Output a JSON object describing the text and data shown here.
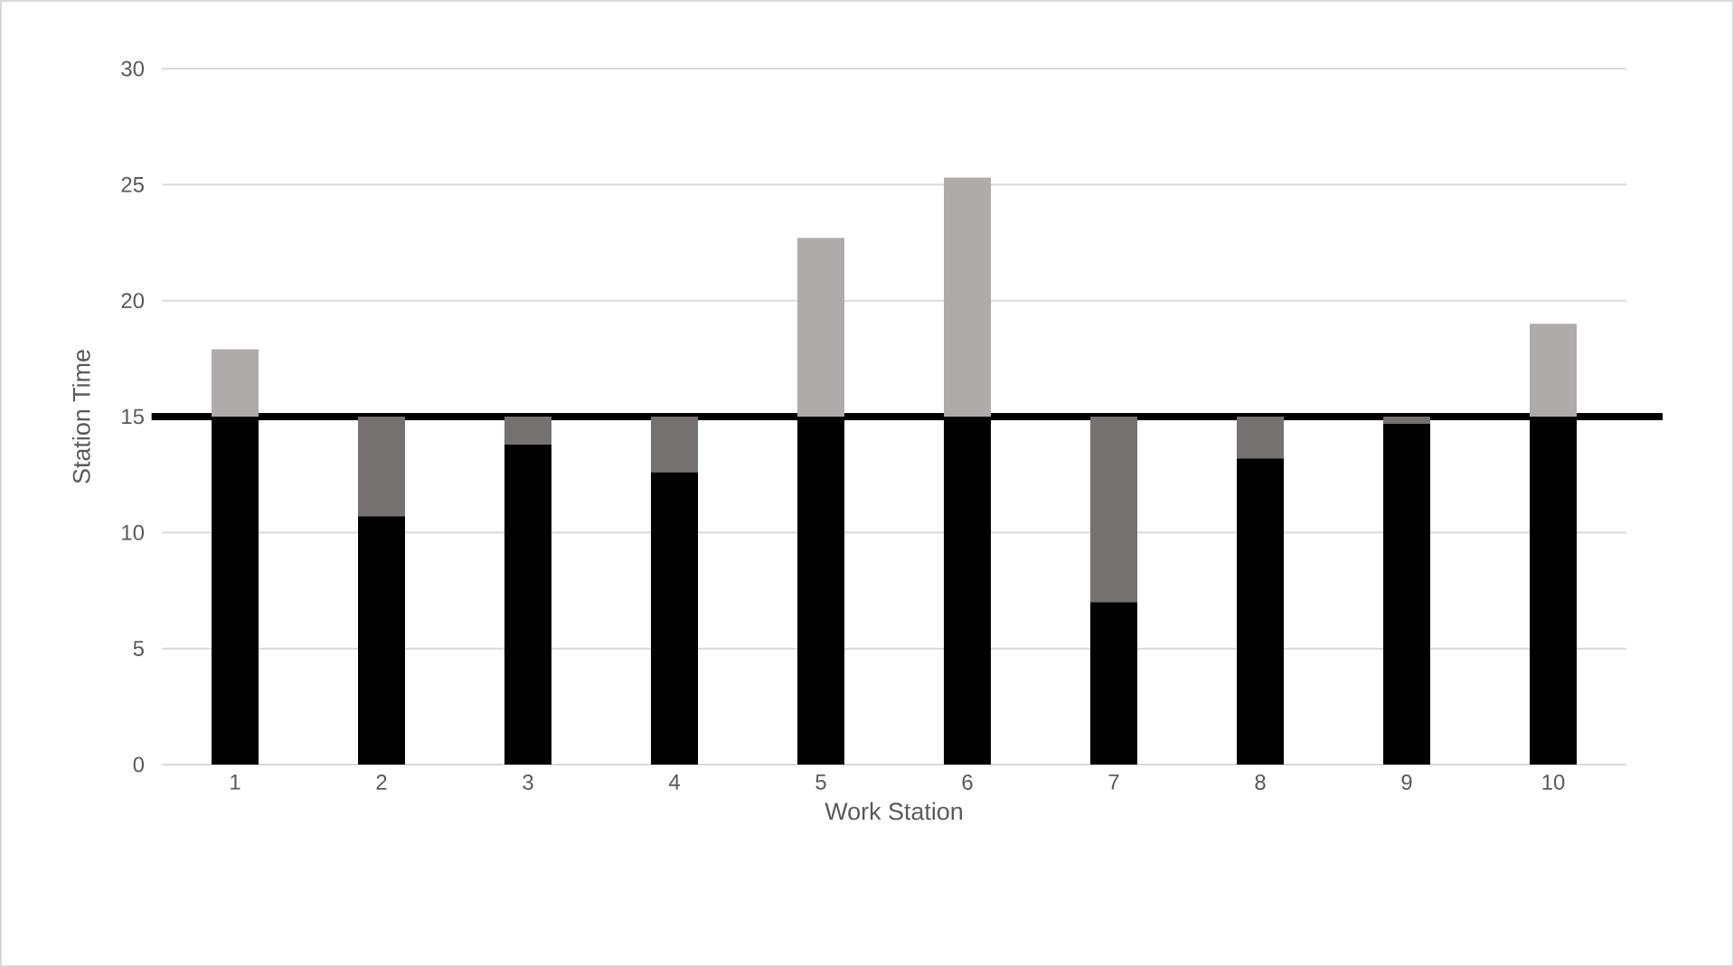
{
  "chart_data": {
    "type": "bar",
    "stacked": true,
    "xlabel": "Work Station",
    "ylabel": "Station Time",
    "categories": [
      "1",
      "2",
      "3",
      "4",
      "5",
      "6",
      "7",
      "8",
      "9",
      "10"
    ],
    "series": [
      {
        "color": "#000000",
        "values": [
          15,
          10.7,
          13.8,
          12.6,
          15,
          15,
          7.0,
          13.2,
          14.7,
          15
        ]
      },
      {
        "color": "#767171",
        "values": [
          0,
          4.3,
          1.2,
          2.4,
          0,
          0,
          8.0,
          1.8,
          0.3,
          0
        ]
      },
      {
        "color": "#afabab",
        "values": [
          2.9,
          0,
          0,
          0,
          7.7,
          10.3,
          0,
          0,
          0,
          4.0
        ]
      }
    ],
    "ylim": [
      0,
      30
    ],
    "yticks": [
      0,
      5,
      10,
      15,
      20,
      25,
      30
    ],
    "grid": "y",
    "ref_lines": [
      {
        "axis": "y",
        "value": 15,
        "color": "#000000"
      }
    ]
  }
}
